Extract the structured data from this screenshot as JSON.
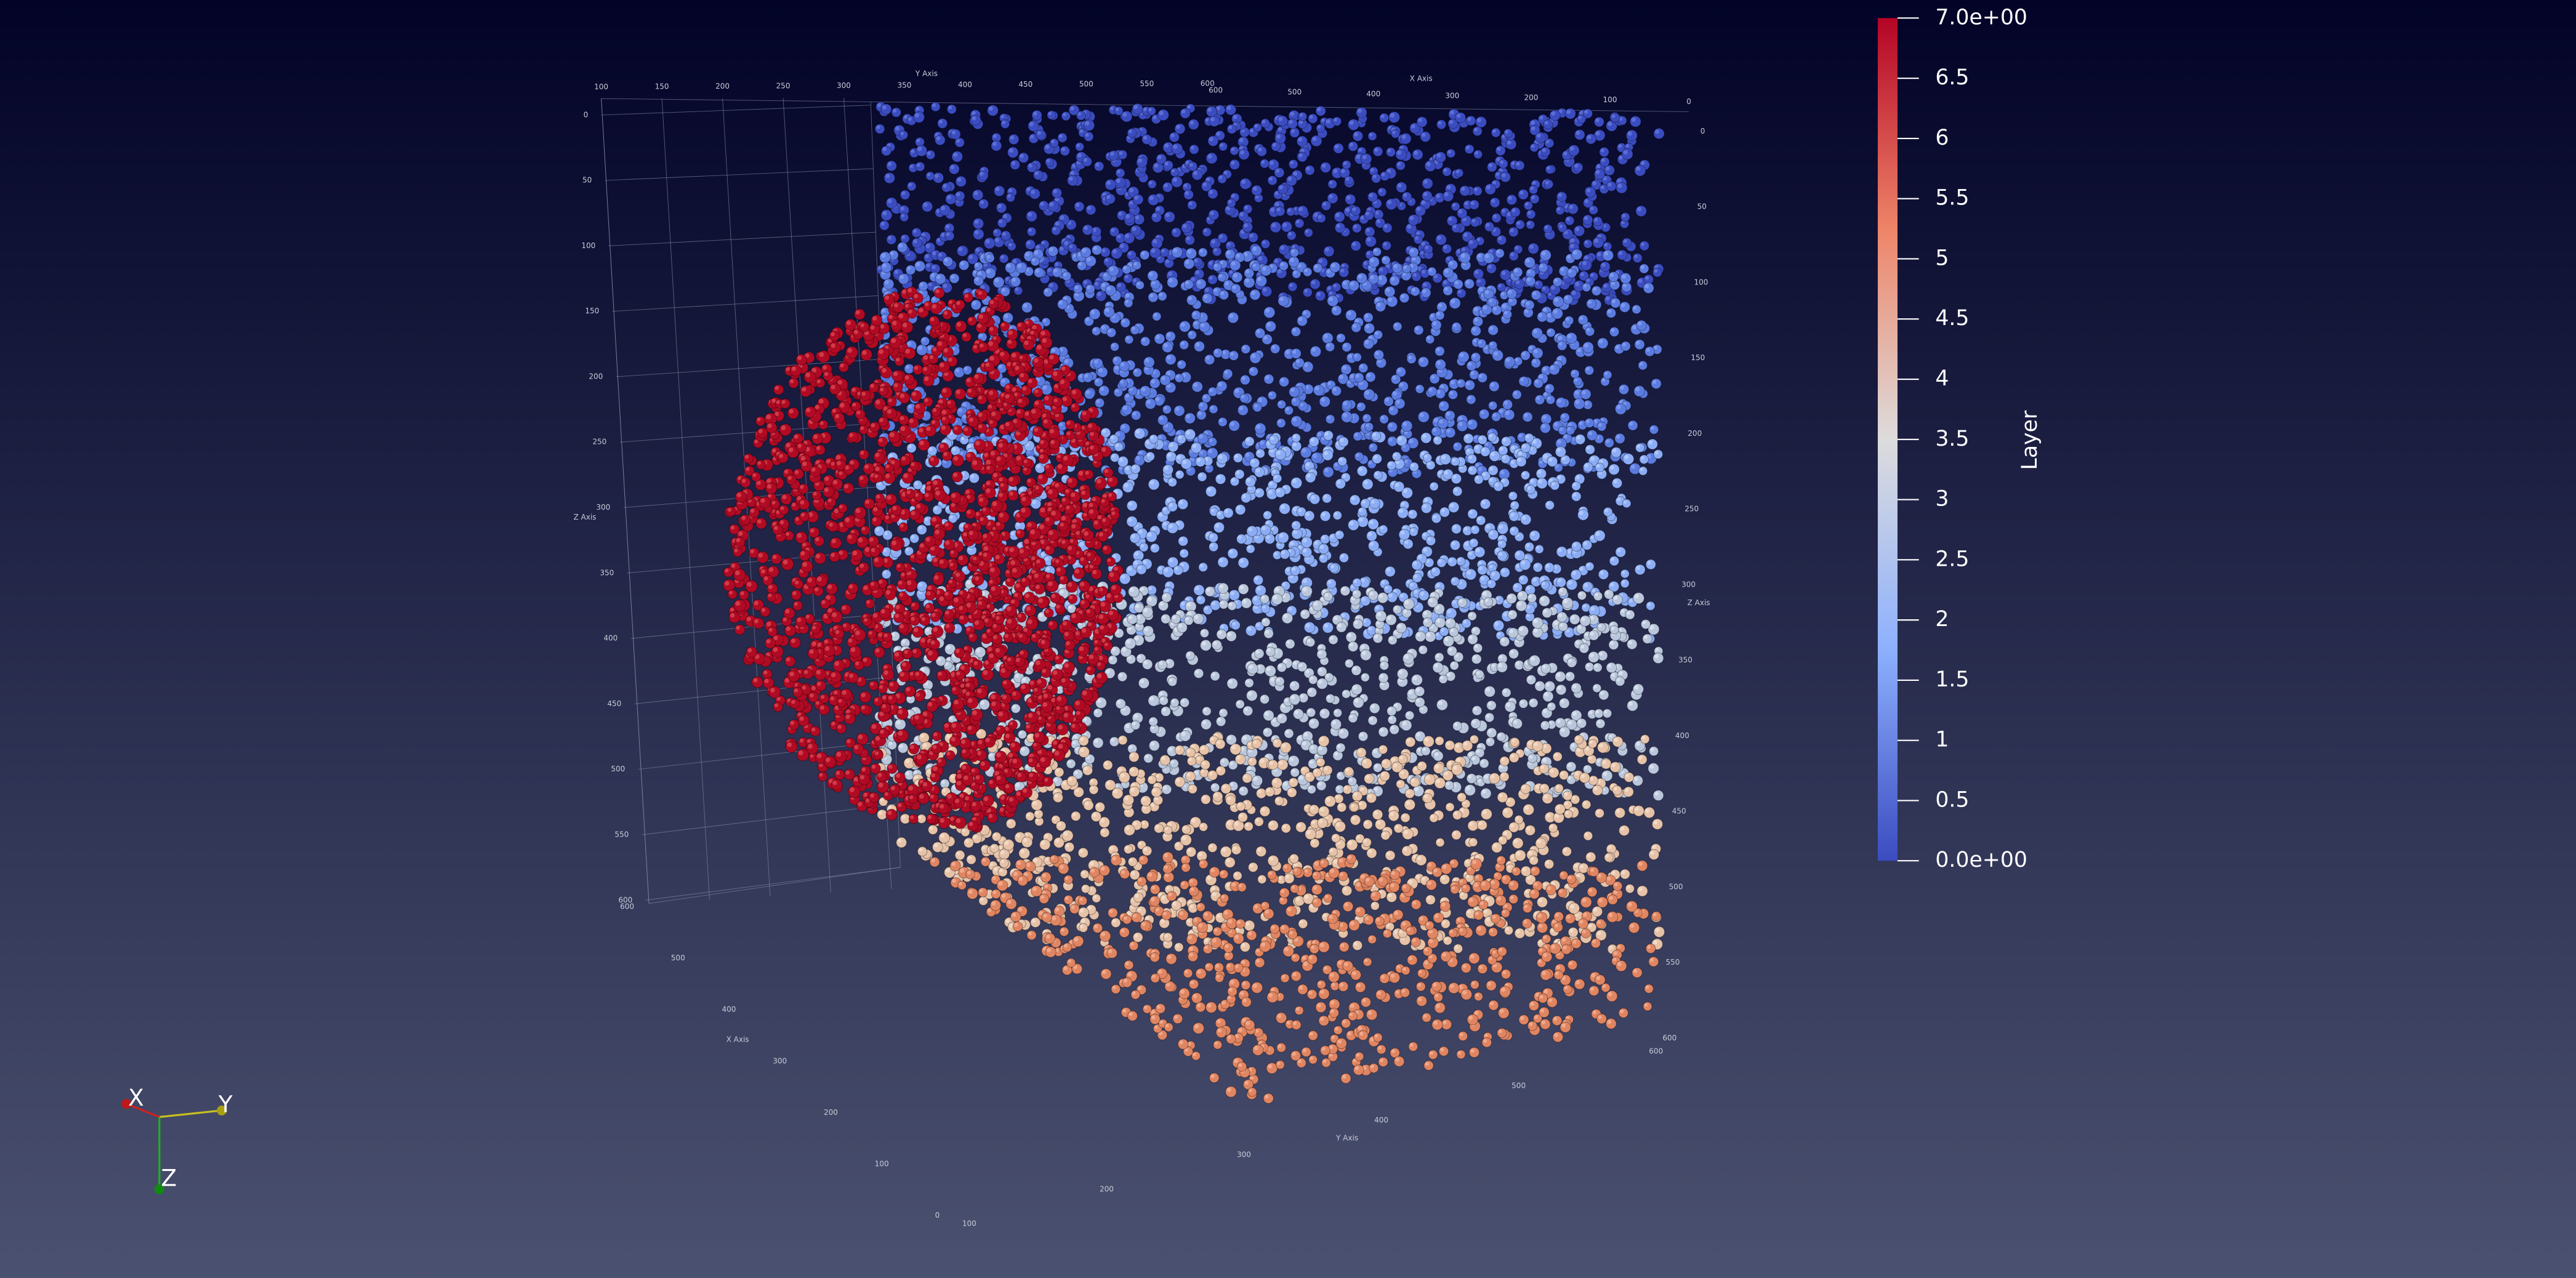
{
  "colorbar": {
    "title": "Layer",
    "ticks": [
      "7.0e+00",
      "6.5",
      "6",
      "5.5",
      "5",
      "4.5",
      "4",
      "3.5",
      "3",
      "2.5",
      "2",
      "1.5",
      "1",
      "0.5",
      "0.0e+00"
    ]
  },
  "axes": {
    "top_y": {
      "label": "Y Axis",
      "ticks": [
        "100",
        "150",
        "200",
        "250",
        "300",
        "350",
        "400",
        "450",
        "500",
        "550",
        "600"
      ]
    },
    "top_x": {
      "label": "X Axis",
      "ticks": [
        "600",
        "500",
        "400",
        "300",
        "200",
        "100",
        "0"
      ]
    },
    "left_z": {
      "label": "Z Axis",
      "ticks": [
        "0",
        "50",
        "100",
        "150",
        "200",
        "250",
        "300",
        "350",
        "400",
        "450",
        "500",
        "550",
        "600"
      ]
    },
    "right_z": {
      "label": "Z Axis",
      "ticks": [
        "0",
        "50",
        "100",
        "150",
        "200",
        "250",
        "300",
        "350",
        "400",
        "450",
        "500",
        "550",
        "600"
      ]
    },
    "bottom_x": {
      "label": "X Axis",
      "ticks": [
        "600",
        "500",
        "400",
        "300",
        "200",
        "100",
        "0"
      ]
    },
    "bottom_y": {
      "label": "Y Axis",
      "ticks": [
        "100",
        "200",
        "300",
        "400",
        "500",
        "600"
      ]
    }
  },
  "orientation": {
    "x": "X",
    "y": "Y",
    "z": "Z"
  }
}
